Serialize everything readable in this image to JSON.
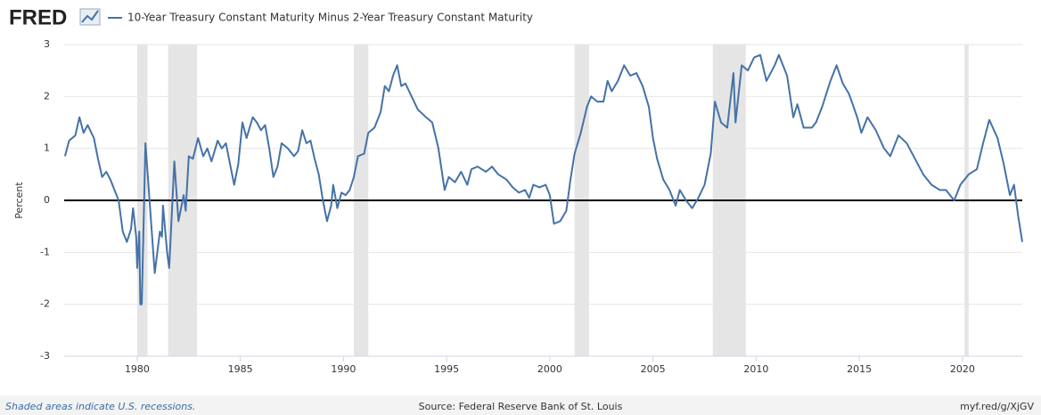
{
  "chart_data": {
    "type": "line",
    "logo": "FRED",
    "y_label": "Percent",
    "footer_left": "Shaded areas indicate U.S. recessions.",
    "footer_center": "Source: Federal Reserve Bank of St. Louis",
    "footer_right": "myf.red/g/XjGV",
    "xlim": [
      1976.46,
      2022.9
    ],
    "xticks": [
      1980,
      1985,
      1990,
      1995,
      2000,
      2005,
      2010,
      2015,
      2020
    ],
    "ylim": [
      -3,
      3
    ],
    "yticks": [
      -3,
      -2,
      -1,
      0,
      1,
      2,
      3
    ],
    "grid": true,
    "zero_line": true,
    "recessions": [
      [
        1980.0,
        1980.5
      ],
      [
        1981.5,
        1982.9
      ],
      [
        1990.5,
        1991.2
      ],
      [
        2001.2,
        2001.9
      ],
      [
        2007.9,
        2009.5
      ],
      [
        2020.1,
        2020.3
      ]
    ],
    "x": [
      1976.5,
      1976.7,
      1977.0,
      1977.2,
      1977.4,
      1977.6,
      1977.9,
      1978.1,
      1978.3,
      1978.5,
      1978.7,
      1978.9,
      1979.1,
      1979.3,
      1979.5,
      1979.7,
      1979.8,
      1979.95,
      1980.0,
      1980.1,
      1980.15,
      1980.22,
      1980.4,
      1980.85,
      1981.1,
      1981.2,
      1981.25,
      1981.45,
      1981.55,
      1981.8,
      1982.0,
      1982.1,
      1982.25,
      1982.35,
      1982.5,
      1982.7,
      1982.95,
      1983.2,
      1983.4,
      1983.6,
      1983.9,
      1984.1,
      1984.3,
      1984.5,
      1984.7,
      1984.9,
      1985.1,
      1985.3,
      1985.6,
      1985.8,
      1986.0,
      1986.2,
      1986.4,
      1986.6,
      1986.8,
      1987.0,
      1987.3,
      1987.6,
      1987.8,
      1988.0,
      1988.2,
      1988.4,
      1988.6,
      1988.8,
      1989.0,
      1989.2,
      1989.4,
      1989.5,
      1989.7,
      1989.9,
      1990.1,
      1990.3,
      1990.5,
      1990.7,
      1991.0,
      1991.2,
      1991.5,
      1991.8,
      1992.0,
      1992.2,
      1992.4,
      1992.6,
      1992.8,
      1993.0,
      1993.3,
      1993.6,
      1994.0,
      1994.3,
      1994.6,
      1994.9,
      1995.1,
      1995.4,
      1995.7,
      1996.0,
      1996.2,
      1996.5,
      1996.9,
      1997.2,
      1997.5,
      1997.9,
      1998.2,
      1998.5,
      1998.8,
      1999.0,
      1999.2,
      1999.5,
      1999.8,
      2000.0,
      2000.2,
      2000.5,
      2000.8,
      2001.0,
      2001.2,
      2001.5,
      2001.8,
      2002.0,
      2002.3,
      2002.6,
      2002.8,
      2003.0,
      2003.3,
      2003.6,
      2003.9,
      2004.2,
      2004.5,
      2004.8,
      2005.0,
      2005.2,
      2005.5,
      2005.8,
      2006.1,
      2006.3,
      2006.6,
      2006.9,
      2007.2,
      2007.5,
      2007.8,
      2008.0,
      2008.3,
      2008.6,
      2008.9,
      2009.0,
      2009.3,
      2009.6,
      2009.9,
      2010.2,
      2010.5,
      2010.9,
      2011.1,
      2011.5,
      2011.8,
      2012.0,
      2012.3,
      2012.7,
      2012.9,
      2013.2,
      2013.6,
      2013.9,
      2014.2,
      2014.5,
      2014.9,
      2015.1,
      2015.4,
      2015.8,
      2016.2,
      2016.5,
      2016.9,
      2017.3,
      2017.7,
      2018.1,
      2018.5,
      2018.9,
      2019.2,
      2019.6,
      2019.9,
      2020.3,
      2020.7,
      2021.0,
      2021.3,
      2021.7,
      2022.0,
      2022.3,
      2022.5,
      2022.7,
      2022.9
    ],
    "series": [
      {
        "name": "10-Year Treasury Constant Maturity Minus 2-Year Treasury Constant Maturity",
        "color": "#4572a7",
        "values": [
          0.85,
          1.15,
          1.25,
          1.6,
          1.3,
          1.45,
          1.2,
          0.8,
          0.45,
          0.55,
          0.4,
          0.2,
          0.0,
          -0.6,
          -0.8,
          -0.55,
          -0.15,
          -0.7,
          -1.3,
          -0.6,
          -2.0,
          -2.0,
          1.1,
          -1.4,
          -0.6,
          -0.7,
          -0.1,
          -1.0,
          -1.3,
          0.75,
          -0.4,
          -0.2,
          0.1,
          -0.2,
          0.85,
          0.8,
          1.2,
          0.85,
          1.0,
          0.75,
          1.15,
          1.0,
          1.1,
          0.7,
          0.3,
          0.7,
          1.5,
          1.2,
          1.6,
          1.5,
          1.35,
          1.45,
          1.0,
          0.45,
          0.65,
          1.1,
          1.0,
          0.85,
          0.95,
          1.35,
          1.1,
          1.15,
          0.8,
          0.5,
          0.0,
          -0.4,
          -0.1,
          0.3,
          -0.15,
          0.15,
          0.1,
          0.2,
          0.45,
          0.85,
          0.9,
          1.3,
          1.4,
          1.7,
          2.2,
          2.1,
          2.4,
          2.6,
          2.2,
          2.25,
          2.0,
          1.75,
          1.6,
          1.5,
          1.0,
          0.2,
          0.45,
          0.35,
          0.55,
          0.3,
          0.6,
          0.65,
          0.55,
          0.65,
          0.5,
          0.4,
          0.25,
          0.15,
          0.2,
          0.05,
          0.3,
          0.25,
          0.3,
          0.1,
          -0.45,
          -0.4,
          -0.2,
          0.4,
          0.9,
          1.3,
          1.8,
          2.0,
          1.9,
          1.9,
          2.3,
          2.1,
          2.3,
          2.6,
          2.4,
          2.45,
          2.2,
          1.8,
          1.2,
          0.8,
          0.4,
          0.2,
          -0.1,
          0.2,
          0.0,
          -0.15,
          0.05,
          0.3,
          0.9,
          1.9,
          1.5,
          1.4,
          2.45,
          1.5,
          2.6,
          2.5,
          2.75,
          2.8,
          2.3,
          2.6,
          2.8,
          2.4,
          1.6,
          1.85,
          1.4,
          1.4,
          1.5,
          1.8,
          2.3,
          2.6,
          2.25,
          2.05,
          1.6,
          1.3,
          1.6,
          1.35,
          1.0,
          0.85,
          1.25,
          1.1,
          0.8,
          0.5,
          0.3,
          0.2,
          0.2,
          0.0,
          0.3,
          0.5,
          0.6,
          1.1,
          1.55,
          1.2,
          0.7,
          0.1,
          0.3,
          -0.3,
          -0.8
        ]
      }
    ]
  }
}
